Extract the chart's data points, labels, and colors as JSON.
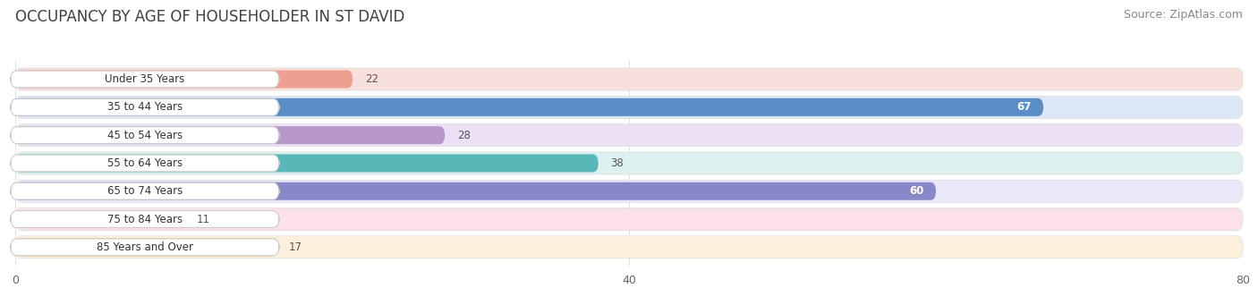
{
  "title": "OCCUPANCY BY AGE OF HOUSEHOLDER IN ST DAVID",
  "source": "Source: ZipAtlas.com",
  "categories": [
    "Under 35 Years",
    "35 to 44 Years",
    "45 to 54 Years",
    "55 to 64 Years",
    "65 to 74 Years",
    "75 to 84 Years",
    "85 Years and Over"
  ],
  "values": [
    22,
    67,
    28,
    38,
    60,
    11,
    17
  ],
  "bar_colors": [
    "#EEA090",
    "#5B8DC8",
    "#B898C8",
    "#58B8B8",
    "#8888C8",
    "#F098B0",
    "#F0C888"
  ],
  "bg_colors": [
    "#F8E0DC",
    "#DCE8F8",
    "#ECE0F4",
    "#DCF0F0",
    "#E8E8F8",
    "#FCE0EC",
    "#FCF0DC"
  ],
  "xlim": [
    0,
    80
  ],
  "xticks": [
    0,
    40,
    80
  ],
  "label_color_dark": "#555555",
  "label_color_white": "#ffffff",
  "value_threshold": 50,
  "title_fontsize": 12,
  "source_fontsize": 9,
  "bar_height": 0.72,
  "background_color": "#ffffff",
  "chart_bg": "#f8f8f8",
  "grid_color": "#e0e0e0"
}
